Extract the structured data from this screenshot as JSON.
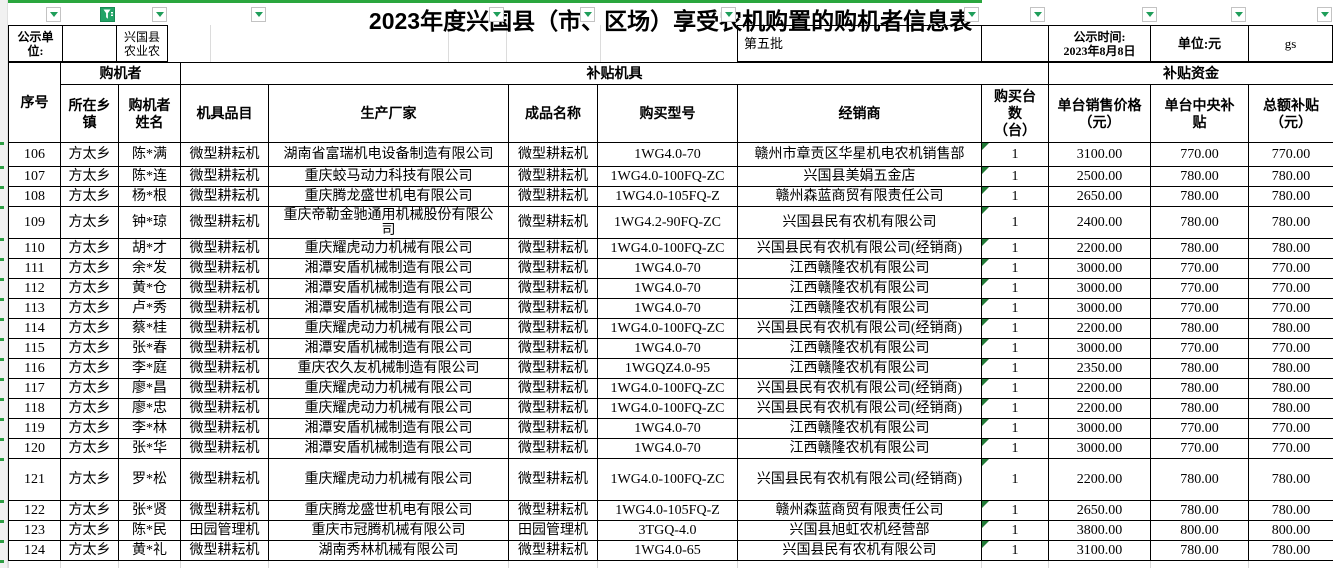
{
  "sheet": {
    "title": "2023年度兴国县（市、区场）享受农机购置的购机者信息表",
    "info_row": {
      "publisher_label": "公示单\n位:",
      "publisher_value": "兴国县\n农业农",
      "batch": "第五批",
      "publish_time": "公示时间:\n2023年8月8日",
      "unit": "单位:元",
      "note": "gs"
    },
    "groups": {
      "buyer": "购机者",
      "machine": "补贴机具",
      "funds": "补贴资金"
    },
    "columns_display": [
      "序号",
      "所在乡\n镇",
      "购机者\n姓名",
      "机具品目",
      "生产厂家",
      "成品名称",
      "购买型号",
      "经销商",
      "购买台\n数\n（台）",
      "单台销售价格\n（元）",
      "单台中央补\n贴",
      "总额补贴\n（元）"
    ],
    "filters": {
      "active_column": "所在乡镇",
      "filtered_value": "方太乡"
    },
    "rows": [
      [
        "106",
        "方太乡",
        "陈*满",
        "微型耕耘机",
        "湖南省富瑞机电设备制造有限公司",
        "微型耕耘机",
        "1WG4.0-70",
        "赣州市章贡区华星机电农机销售部",
        "1",
        "3100.00",
        "770.00",
        "770.00"
      ],
      [
        "107",
        "方太乡",
        "陈*连",
        "微型耕耘机",
        "重庆蛟马动力科技有限公司",
        "微型耕耘机",
        "1WG4.0-100FQ-ZC",
        "兴国县美娟五金店",
        "1",
        "2500.00",
        "780.00",
        "780.00"
      ],
      [
        "108",
        "方太乡",
        "杨*根",
        "微型耕耘机",
        "重庆腾龙盛世机电有限公司",
        "微型耕耘机",
        "1WG4.0-105FQ-Z",
        "赣州森蓝商贸有限责任公司",
        "1",
        "2650.00",
        "780.00",
        "780.00"
      ],
      [
        "109",
        "方太乡",
        "钟*琼",
        "微型耕耘机",
        "重庆帝勒金驰通用机械股份有限公\n司",
        "微型耕耘机",
        "1WG4.2-90FQ-ZC",
        "兴国县民有农机有限公司",
        "1",
        "2400.00",
        "780.00",
        "780.00"
      ],
      [
        "110",
        "方太乡",
        "胡*才",
        "微型耕耘机",
        "重庆耀虎动力机械有限公司",
        "微型耕耘机",
        "1WG4.0-100FQ-ZC",
        "兴国县民有农机有限公司(经销商)",
        "1",
        "2200.00",
        "780.00",
        "780.00"
      ],
      [
        "111",
        "方太乡",
        "余*发",
        "微型耕耘机",
        "湘潭安盾机械制造有限公司",
        "微型耕耘机",
        "1WG4.0-70",
        "江西赣隆农机有限公司",
        "1",
        "3000.00",
        "770.00",
        "770.00"
      ],
      [
        "112",
        "方太乡",
        "黄*仓",
        "微型耕耘机",
        "湘潭安盾机械制造有限公司",
        "微型耕耘机",
        "1WG4.0-70",
        "江西赣隆农机有限公司",
        "1",
        "3000.00",
        "770.00",
        "770.00"
      ],
      [
        "113",
        "方太乡",
        "卢*秀",
        "微型耕耘机",
        "湘潭安盾机械制造有限公司",
        "微型耕耘机",
        "1WG4.0-70",
        "江西赣隆农机有限公司",
        "1",
        "3000.00",
        "770.00",
        "770.00"
      ],
      [
        "114",
        "方太乡",
        "蔡*桂",
        "微型耕耘机",
        "重庆耀虎动力机械有限公司",
        "微型耕耘机",
        "1WG4.0-100FQ-ZC",
        "兴国县民有农机有限公司(经销商)",
        "1",
        "2200.00",
        "780.00",
        "780.00"
      ],
      [
        "115",
        "方太乡",
        "张*春",
        "微型耕耘机",
        "湘潭安盾机械制造有限公司",
        "微型耕耘机",
        "1WG4.0-70",
        "江西赣隆农机有限公司",
        "1",
        "3000.00",
        "770.00",
        "770.00"
      ],
      [
        "116",
        "方太乡",
        "李*庭",
        "微型耕耘机",
        "重庆农久友机械制造有限公司",
        "微型耕耘机",
        "1WGQZ4.0-95",
        "江西赣隆农机有限公司",
        "1",
        "2350.00",
        "780.00",
        "780.00"
      ],
      [
        "117",
        "方太乡",
        "廖*昌",
        "微型耕耘机",
        "重庆耀虎动力机械有限公司",
        "微型耕耘机",
        "1WG4.0-100FQ-ZC",
        "兴国县民有农机有限公司(经销商)",
        "1",
        "2200.00",
        "780.00",
        "780.00"
      ],
      [
        "118",
        "方太乡",
        "廖*忠",
        "微型耕耘机",
        "重庆耀虎动力机械有限公司",
        "微型耕耘机",
        "1WG4.0-100FQ-ZC",
        "兴国县民有农机有限公司(经销商)",
        "1",
        "2200.00",
        "780.00",
        "780.00"
      ],
      [
        "119",
        "方太乡",
        "李*林",
        "微型耕耘机",
        "湘潭安盾机械制造有限公司",
        "微型耕耘机",
        "1WG4.0-70",
        "江西赣隆农机有限公司",
        "1",
        "3000.00",
        "770.00",
        "770.00"
      ],
      [
        "120",
        "方太乡",
        "张*华",
        "微型耕耘机",
        "湘潭安盾机械制造有限公司",
        "微型耕耘机",
        "1WG4.0-70",
        "江西赣隆农机有限公司",
        "1",
        "3000.00",
        "770.00",
        "770.00"
      ],
      [
        "121",
        "方太乡",
        "罗*松",
        "微型耕耘机",
        "重庆耀虎动力机械有限公司",
        "微型耕耘机",
        "1WG4.0-100FQ-ZC",
        "兴国县民有农机有限公司(经销商)",
        "1",
        "2200.00",
        "780.00",
        "780.00"
      ],
      [
        "122",
        "方太乡",
        "张*贤",
        "微型耕耘机",
        "重庆腾龙盛世机电有限公司",
        "微型耕耘机",
        "1WG4.0-105FQ-Z",
        "赣州森蓝商贸有限责任公司",
        "1",
        "2650.00",
        "780.00",
        "780.00"
      ],
      [
        "123",
        "方太乡",
        "陈*民",
        "田园管理机",
        "重庆市冠腾机械有限公司",
        "田园管理机",
        "3TGQ-4.0",
        "兴国县旭虹农机经营部",
        "1",
        "3800.00",
        "800.00",
        "800.00"
      ],
      [
        "124",
        "方太乡",
        "黄*礼",
        "微型耕耘机",
        "湖南秀林机械有限公司",
        "微型耕耘机",
        "1WG4.0-65",
        "兴国县民有农机有限公司",
        "1",
        "3100.00",
        "780.00",
        "780.00"
      ]
    ],
    "colors": {
      "accent_green": "#21a366",
      "top_line_green": "#2aa63e",
      "cell_flag_green": "#217a36",
      "arrow_green": "#1f9e5a"
    }
  }
}
